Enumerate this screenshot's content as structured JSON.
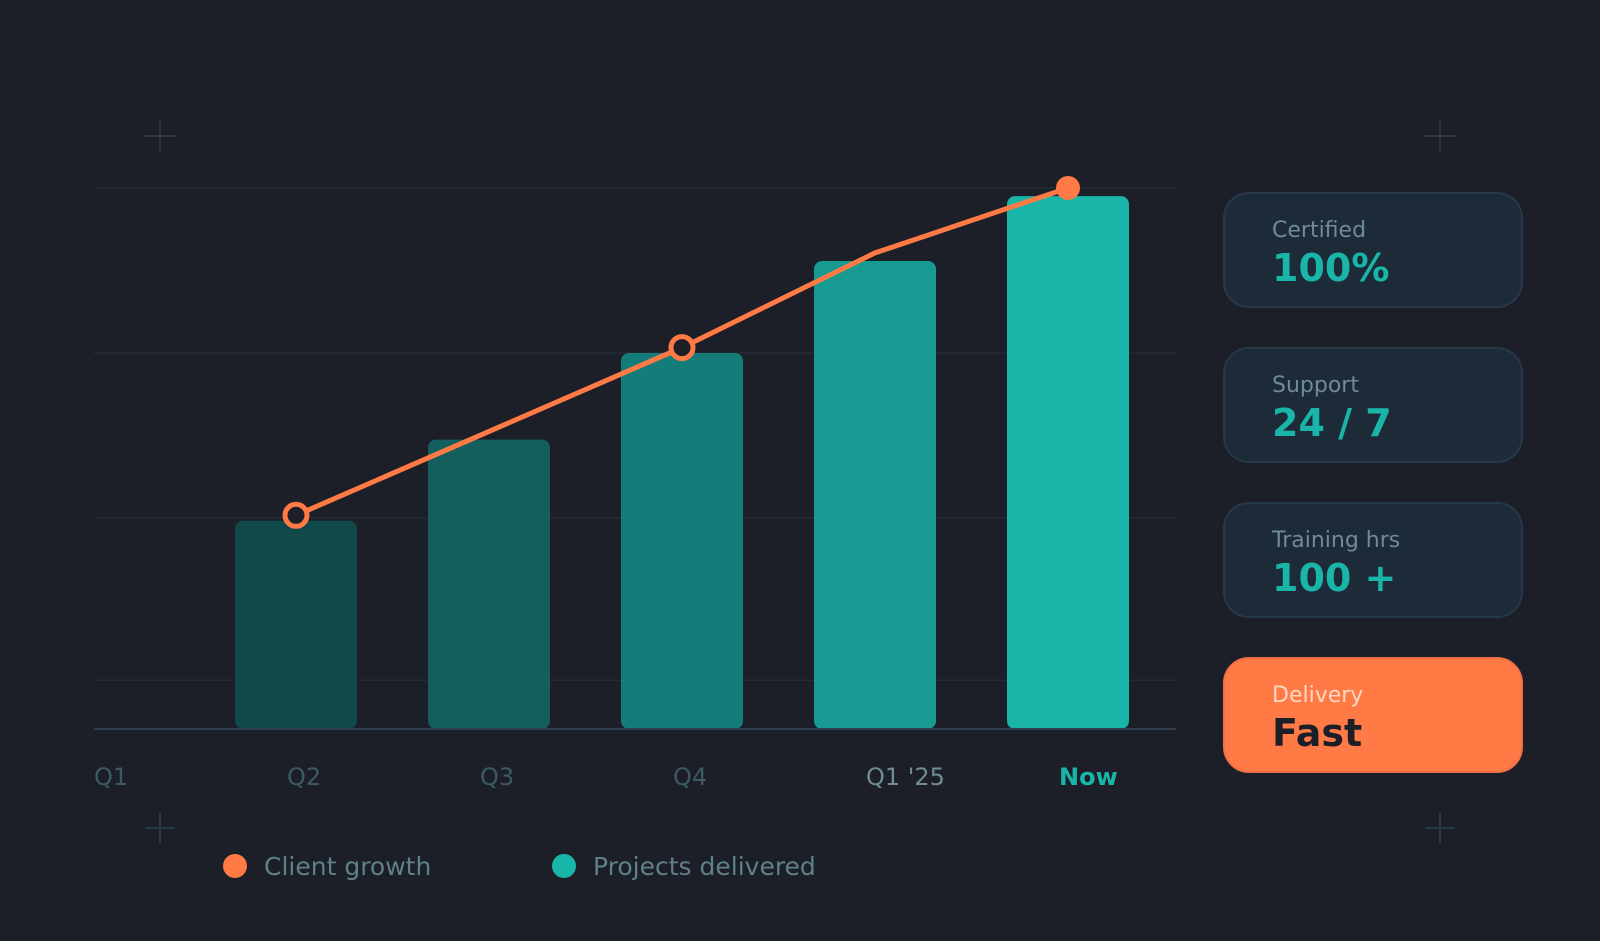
{
  "chart_data": {
    "type": "bar",
    "categories": [
      "Q1",
      "Q2",
      "Q3",
      "Q4",
      "Q1 '25",
      "Now"
    ],
    "series": [
      {
        "name": "Projects delivered",
        "type": "bar",
        "values": [
          null,
          38.5,
          53.5,
          69.5,
          86.5,
          98.5
        ],
        "colors": [
          "#11484a",
          "#11484a",
          "#145e5d",
          "#157d79",
          "#169a92",
          "#19b5a8"
        ]
      },
      {
        "name": "Client growth",
        "type": "line",
        "color": "#ff7a45",
        "points": [
          {
            "x": 1,
            "y": 39.5
          },
          {
            "x": 2,
            "y": 55
          },
          {
            "x": 3,
            "y": 70.5
          },
          {
            "x": 4,
            "y": 88
          },
          {
            "x": 5,
            "y": 100
          }
        ],
        "markers": [
          {
            "x": 1,
            "y": 39.5,
            "style": "hollow"
          },
          {
            "x": 3,
            "y": 70.5,
            "style": "hollow"
          },
          {
            "x": 5,
            "y": 100,
            "style": "filled"
          }
        ]
      }
    ],
    "ylim": [
      0,
      100
    ],
    "grid": true,
    "legend": "bottom-left",
    "legend_items": [
      {
        "label": "Client growth",
        "color": "#ff7a45"
      },
      {
        "label": "Projects delivered",
        "color": "#19b5a8"
      }
    ],
    "title": "",
    "xlabel": "",
    "ylabel": ""
  },
  "stats": [
    {
      "label": "Certified",
      "value": "100%",
      "accent": false
    },
    {
      "label": "Support",
      "value": "24 / 7",
      "accent": false
    },
    {
      "label": "Training hrs",
      "value": "100 +",
      "accent": false
    },
    {
      "label": "Delivery",
      "value": "Fast",
      "accent": true
    }
  ],
  "colors": {
    "background": "#1c1f28",
    "teal": "#19b5a8",
    "orange": "#ff7a45",
    "grid": "#252a35",
    "axis": "#2e3f4b"
  },
  "decor_icons": [
    "plus-icon",
    "plus-icon",
    "plus-icon",
    "plus-icon"
  ]
}
